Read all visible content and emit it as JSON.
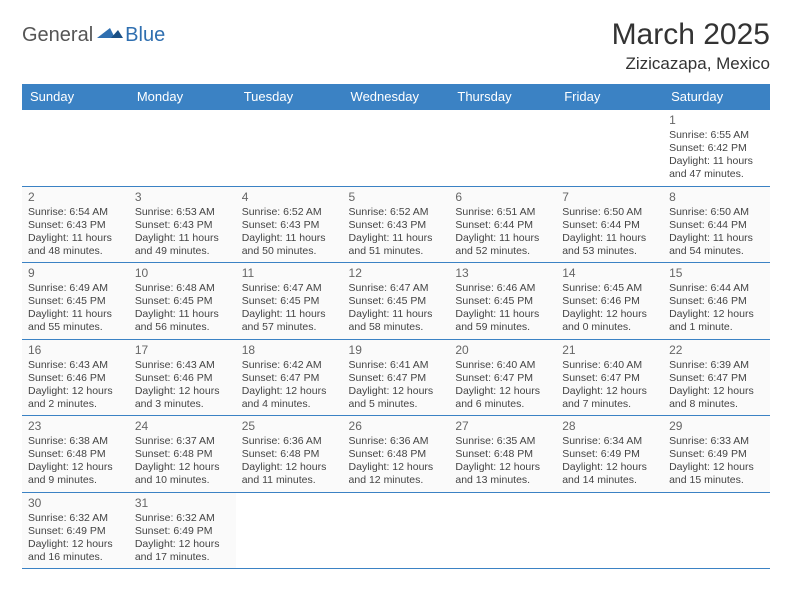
{
  "brand": {
    "general": "General",
    "blue": "Blue"
  },
  "header": {
    "title": "March 2025",
    "location": "Zizicazapa, Mexico"
  },
  "colors": {
    "header_bg": "#3b82c4",
    "header_text": "#ffffff",
    "cell_border": "#3b82c4",
    "cell_bg": "#fafafa",
    "text": "#444444",
    "brand_blue": "#2f6fb0"
  },
  "weekdays": [
    "Sunday",
    "Monday",
    "Tuesday",
    "Wednesday",
    "Thursday",
    "Friday",
    "Saturday"
  ],
  "weeks": [
    [
      null,
      null,
      null,
      null,
      null,
      null,
      {
        "d": "1",
        "sr": "Sunrise: 6:55 AM",
        "ss": "Sunset: 6:42 PM",
        "dl": "Daylight: 11 hours and 47 minutes."
      }
    ],
    [
      {
        "d": "2",
        "sr": "Sunrise: 6:54 AM",
        "ss": "Sunset: 6:43 PM",
        "dl": "Daylight: 11 hours and 48 minutes."
      },
      {
        "d": "3",
        "sr": "Sunrise: 6:53 AM",
        "ss": "Sunset: 6:43 PM",
        "dl": "Daylight: 11 hours and 49 minutes."
      },
      {
        "d": "4",
        "sr": "Sunrise: 6:52 AM",
        "ss": "Sunset: 6:43 PM",
        "dl": "Daylight: 11 hours and 50 minutes."
      },
      {
        "d": "5",
        "sr": "Sunrise: 6:52 AM",
        "ss": "Sunset: 6:43 PM",
        "dl": "Daylight: 11 hours and 51 minutes."
      },
      {
        "d": "6",
        "sr": "Sunrise: 6:51 AM",
        "ss": "Sunset: 6:44 PM",
        "dl": "Daylight: 11 hours and 52 minutes."
      },
      {
        "d": "7",
        "sr": "Sunrise: 6:50 AM",
        "ss": "Sunset: 6:44 PM",
        "dl": "Daylight: 11 hours and 53 minutes."
      },
      {
        "d": "8",
        "sr": "Sunrise: 6:50 AM",
        "ss": "Sunset: 6:44 PM",
        "dl": "Daylight: 11 hours and 54 minutes."
      }
    ],
    [
      {
        "d": "9",
        "sr": "Sunrise: 6:49 AM",
        "ss": "Sunset: 6:45 PM",
        "dl": "Daylight: 11 hours and 55 minutes."
      },
      {
        "d": "10",
        "sr": "Sunrise: 6:48 AM",
        "ss": "Sunset: 6:45 PM",
        "dl": "Daylight: 11 hours and 56 minutes."
      },
      {
        "d": "11",
        "sr": "Sunrise: 6:47 AM",
        "ss": "Sunset: 6:45 PM",
        "dl": "Daylight: 11 hours and 57 minutes."
      },
      {
        "d": "12",
        "sr": "Sunrise: 6:47 AM",
        "ss": "Sunset: 6:45 PM",
        "dl": "Daylight: 11 hours and 58 minutes."
      },
      {
        "d": "13",
        "sr": "Sunrise: 6:46 AM",
        "ss": "Sunset: 6:45 PM",
        "dl": "Daylight: 11 hours and 59 minutes."
      },
      {
        "d": "14",
        "sr": "Sunrise: 6:45 AM",
        "ss": "Sunset: 6:46 PM",
        "dl": "Daylight: 12 hours and 0 minutes."
      },
      {
        "d": "15",
        "sr": "Sunrise: 6:44 AM",
        "ss": "Sunset: 6:46 PM",
        "dl": "Daylight: 12 hours and 1 minute."
      }
    ],
    [
      {
        "d": "16",
        "sr": "Sunrise: 6:43 AM",
        "ss": "Sunset: 6:46 PM",
        "dl": "Daylight: 12 hours and 2 minutes."
      },
      {
        "d": "17",
        "sr": "Sunrise: 6:43 AM",
        "ss": "Sunset: 6:46 PM",
        "dl": "Daylight: 12 hours and 3 minutes."
      },
      {
        "d": "18",
        "sr": "Sunrise: 6:42 AM",
        "ss": "Sunset: 6:47 PM",
        "dl": "Daylight: 12 hours and 4 minutes."
      },
      {
        "d": "19",
        "sr": "Sunrise: 6:41 AM",
        "ss": "Sunset: 6:47 PM",
        "dl": "Daylight: 12 hours and 5 minutes."
      },
      {
        "d": "20",
        "sr": "Sunrise: 6:40 AM",
        "ss": "Sunset: 6:47 PM",
        "dl": "Daylight: 12 hours and 6 minutes."
      },
      {
        "d": "21",
        "sr": "Sunrise: 6:40 AM",
        "ss": "Sunset: 6:47 PM",
        "dl": "Daylight: 12 hours and 7 minutes."
      },
      {
        "d": "22",
        "sr": "Sunrise: 6:39 AM",
        "ss": "Sunset: 6:47 PM",
        "dl": "Daylight: 12 hours and 8 minutes."
      }
    ],
    [
      {
        "d": "23",
        "sr": "Sunrise: 6:38 AM",
        "ss": "Sunset: 6:48 PM",
        "dl": "Daylight: 12 hours and 9 minutes."
      },
      {
        "d": "24",
        "sr": "Sunrise: 6:37 AM",
        "ss": "Sunset: 6:48 PM",
        "dl": "Daylight: 12 hours and 10 minutes."
      },
      {
        "d": "25",
        "sr": "Sunrise: 6:36 AM",
        "ss": "Sunset: 6:48 PM",
        "dl": "Daylight: 12 hours and 11 minutes."
      },
      {
        "d": "26",
        "sr": "Sunrise: 6:36 AM",
        "ss": "Sunset: 6:48 PM",
        "dl": "Daylight: 12 hours and 12 minutes."
      },
      {
        "d": "27",
        "sr": "Sunrise: 6:35 AM",
        "ss": "Sunset: 6:48 PM",
        "dl": "Daylight: 12 hours and 13 minutes."
      },
      {
        "d": "28",
        "sr": "Sunrise: 6:34 AM",
        "ss": "Sunset: 6:49 PM",
        "dl": "Daylight: 12 hours and 14 minutes."
      },
      {
        "d": "29",
        "sr": "Sunrise: 6:33 AM",
        "ss": "Sunset: 6:49 PM",
        "dl": "Daylight: 12 hours and 15 minutes."
      }
    ],
    [
      {
        "d": "30",
        "sr": "Sunrise: 6:32 AM",
        "ss": "Sunset: 6:49 PM",
        "dl": "Daylight: 12 hours and 16 minutes."
      },
      {
        "d": "31",
        "sr": "Sunrise: 6:32 AM",
        "ss": "Sunset: 6:49 PM",
        "dl": "Daylight: 12 hours and 17 minutes."
      },
      null,
      null,
      null,
      null,
      null
    ]
  ]
}
